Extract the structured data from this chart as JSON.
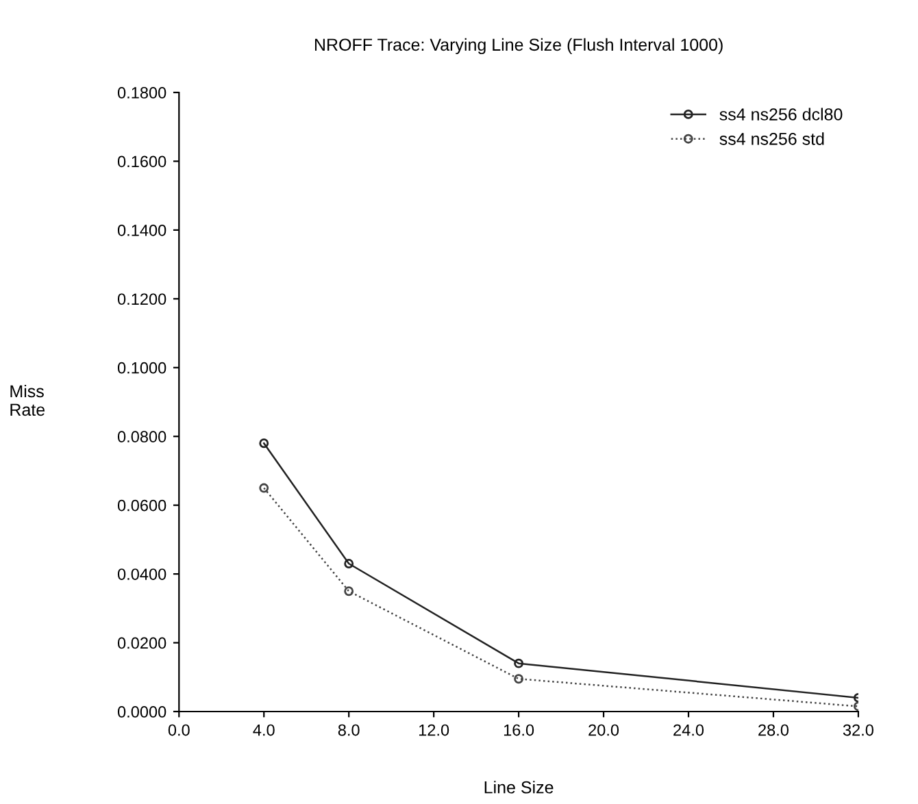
{
  "chart_data": {
    "type": "line",
    "title": "NROFF Trace: Varying Line Size (Flush Interval 1000)",
    "xlabel": "Line Size",
    "ylabel": "Miss\nRate",
    "x": [
      4,
      8,
      16,
      32
    ],
    "series": [
      {
        "name": "ss4 ns256 dcl80",
        "color": "#222222",
        "values": [
          0.078,
          0.043,
          0.014,
          0.004
        ],
        "line_style": "solid"
      },
      {
        "name": "ss4 ns256 std",
        "color": "#444444",
        "values": [
          0.065,
          0.035,
          0.0095,
          0.0015
        ],
        "line_style": "dotted"
      }
    ],
    "xlim": [
      0,
      32
    ],
    "xticks": [
      {
        "value": 0,
        "label": "0.0"
      },
      {
        "value": 4,
        "label": "4.0"
      },
      {
        "value": 8,
        "label": "8.0"
      },
      {
        "value": 12,
        "label": "12.0"
      },
      {
        "value": 16,
        "label": "16.0"
      },
      {
        "value": 20,
        "label": "20.0"
      },
      {
        "value": 24,
        "label": "24.0"
      },
      {
        "value": 28,
        "label": "28.0"
      },
      {
        "value": 32,
        "label": "32.0"
      }
    ],
    "ylim": [
      0,
      0.18
    ],
    "yticks": [
      {
        "value": 0,
        "label": "0.0000"
      },
      {
        "value": 0.02,
        "label": "0.0200"
      },
      {
        "value": 0.04,
        "label": "0.0400"
      },
      {
        "value": 0.06,
        "label": "0.0600"
      },
      {
        "value": 0.08,
        "label": "0.0800"
      },
      {
        "value": 0.1,
        "label": "0.1000"
      },
      {
        "value": 0.12,
        "label": "0.1200"
      },
      {
        "value": 0.14,
        "label": "0.1400"
      },
      {
        "value": 0.16,
        "label": "0.1600"
      },
      {
        "value": 0.18,
        "label": "0.1800"
      }
    ],
    "grid": false,
    "legend": "top right",
    "marker": "circle"
  }
}
